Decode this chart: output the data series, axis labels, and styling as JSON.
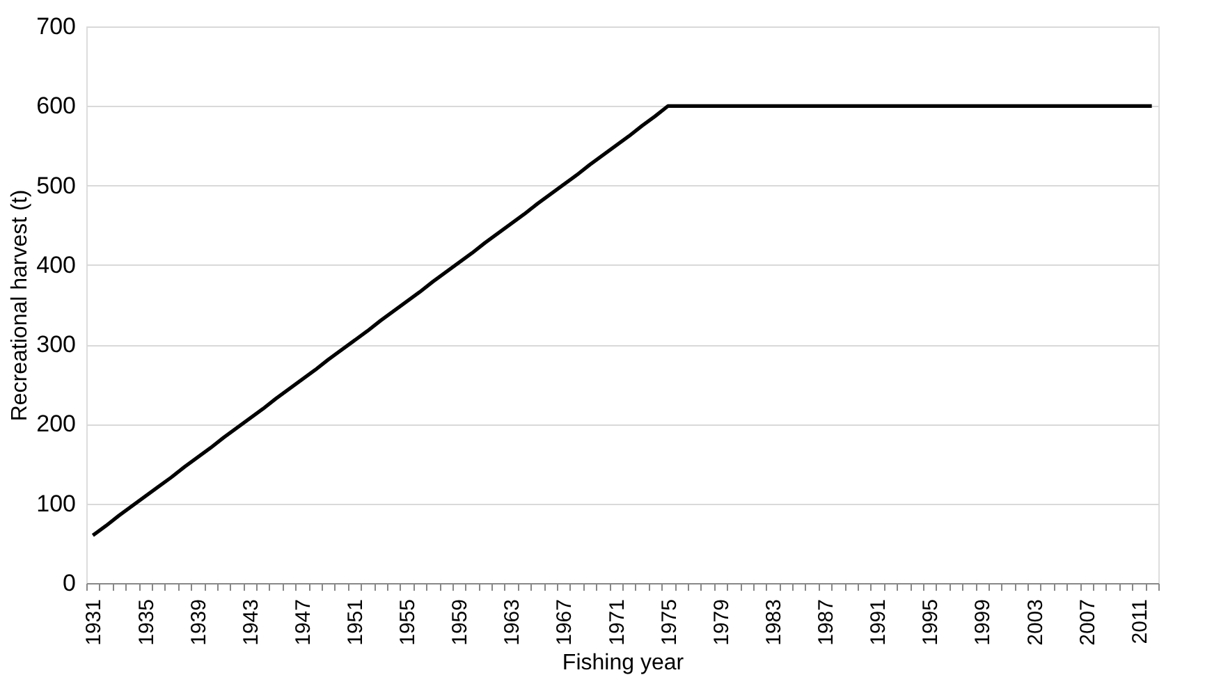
{
  "chart_data": {
    "type": "line",
    "xlabel": "Fishing year",
    "ylabel": "Recreational harvest (t)",
    "categories": [
      "1931",
      null,
      null,
      null,
      "1935",
      null,
      null,
      null,
      "1939",
      null,
      null,
      null,
      "1943",
      null,
      null,
      null,
      "1947",
      null,
      null,
      null,
      "1951",
      null,
      null,
      null,
      "1955",
      null,
      null,
      null,
      "1959",
      null,
      null,
      null,
      "1963",
      null,
      null,
      null,
      "1967",
      null,
      null,
      null,
      "1971",
      null,
      null,
      null,
      "1975",
      null,
      null,
      null,
      "1979",
      null,
      null,
      null,
      "1983",
      null,
      null,
      null,
      "1987",
      null,
      null,
      null,
      "1991",
      null,
      null,
      null,
      "1995",
      null,
      null,
      null,
      "1999",
      null,
      null,
      null,
      "2003",
      null,
      null,
      null,
      "2007",
      null,
      null,
      null,
      "2011",
      null
    ],
    "series": [
      {
        "color": "#000000",
        "values": [
          60,
          72,
          85,
          97,
          109,
          121,
          133,
          146,
          158,
          170,
          183,
          195,
          207,
          219,
          232,
          244,
          256,
          268,
          281,
          293,
          305,
          317,
          330,
          342,
          354,
          366,
          379,
          391,
          403,
          415,
          428,
          440,
          452,
          464,
          477,
          489,
          501,
          513,
          526,
          538,
          550,
          562,
          575,
          587,
          600,
          600,
          600,
          600,
          600,
          600,
          600,
          600,
          600,
          600,
          600,
          600,
          600,
          600,
          600,
          600,
          600,
          600,
          600,
          600,
          600,
          600,
          600,
          600,
          600,
          600,
          600,
          600,
          600,
          600,
          600,
          600,
          600,
          600,
          600,
          600,
          600,
          600
        ]
      }
    ],
    "ylim": [
      0,
      700
    ],
    "yticks": [
      0,
      100,
      200,
      300,
      400,
      500,
      600,
      700
    ],
    "grid": "y",
    "legend": false,
    "marker": "none",
    "line_style": "solid"
  }
}
